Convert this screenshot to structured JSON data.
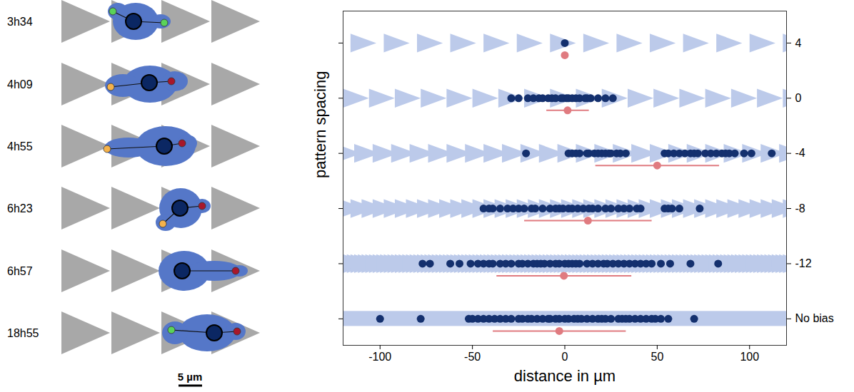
{
  "diagram": {
    "time_labels": [
      "3h34",
      "4h09",
      "4h55",
      "6h23",
      "6h57",
      "18h55"
    ],
    "scale_bar": "5 µm"
  },
  "chart_data": {
    "type": "scatter",
    "x_label": "distance in µm",
    "y_label": "pattern spacing",
    "categories": [
      "4",
      "0",
      "-4",
      "-8",
      "-12",
      "No bias"
    ],
    "xlim": [
      -120,
      120
    ],
    "xticks": [
      -100,
      -50,
      0,
      50,
      100
    ],
    "color": "#14306e",
    "rows": [
      {
        "category": "4",
        "values": [
          0
        ],
        "mean": 0,
        "sd": 0
      },
      {
        "category": "0",
        "values": [
          -29,
          -25,
          -20,
          -17,
          -14,
          -12,
          -9,
          -7,
          -5,
          -2,
          -1,
          1,
          2,
          4,
          6,
          8,
          11,
          12,
          14,
          18,
          22,
          26
        ],
        "mean": 1.5,
        "sd": 11.5
      },
      {
        "category": "-4",
        "values": [
          -21,
          2,
          4,
          6,
          8,
          12,
          13,
          16,
          18,
          20,
          22,
          24,
          25,
          28,
          30,
          33,
          54,
          56,
          59,
          62,
          65,
          68,
          70,
          72,
          76,
          79,
          82,
          85,
          87,
          89,
          92,
          97,
          101,
          112
        ],
        "mean": 50,
        "sd": 33.5
      },
      {
        "category": "-8",
        "values": [
          -44,
          -41,
          -39,
          -35,
          -31,
          -28,
          -25,
          -22,
          -18,
          -16,
          -12,
          -8,
          -5,
          -3,
          -1,
          2,
          4,
          7,
          10,
          13,
          15,
          18,
          22,
          25,
          29,
          32,
          35,
          39,
          41,
          54,
          56,
          58,
          62,
          73
        ],
        "mean": 12.5,
        "sd": 34.5
      },
      {
        "category": "-12",
        "values": [
          -77,
          -73,
          -62,
          -57,
          -51,
          -47,
          -44,
          -41,
          -39,
          -35,
          -32,
          -29,
          -25,
          -23,
          -20,
          -17,
          -15,
          -13,
          -11,
          -8,
          -5,
          -3,
          0,
          2,
          4,
          6,
          8,
          12,
          15,
          18,
          21,
          23,
          26,
          29,
          32,
          35,
          38,
          41,
          44,
          47,
          52,
          57,
          68,
          83
        ],
        "mean": -0.5,
        "sd": 36.5
      },
      {
        "category": "No bias",
        "values": [
          -100,
          -78,
          -52,
          -50,
          -47,
          -44,
          -41,
          -38,
          -35,
          -32,
          -29,
          -25,
          -23,
          -20,
          -18,
          -15,
          -12,
          -9,
          -8,
          -5,
          -3,
          0,
          2,
          5,
          7,
          9,
          12,
          15,
          18,
          20,
          22,
          25,
          29,
          31,
          33,
          35,
          38,
          41,
          44,
          47,
          49,
          52,
          56,
          70
        ],
        "mean": -3,
        "sd": 36
      }
    ]
  }
}
